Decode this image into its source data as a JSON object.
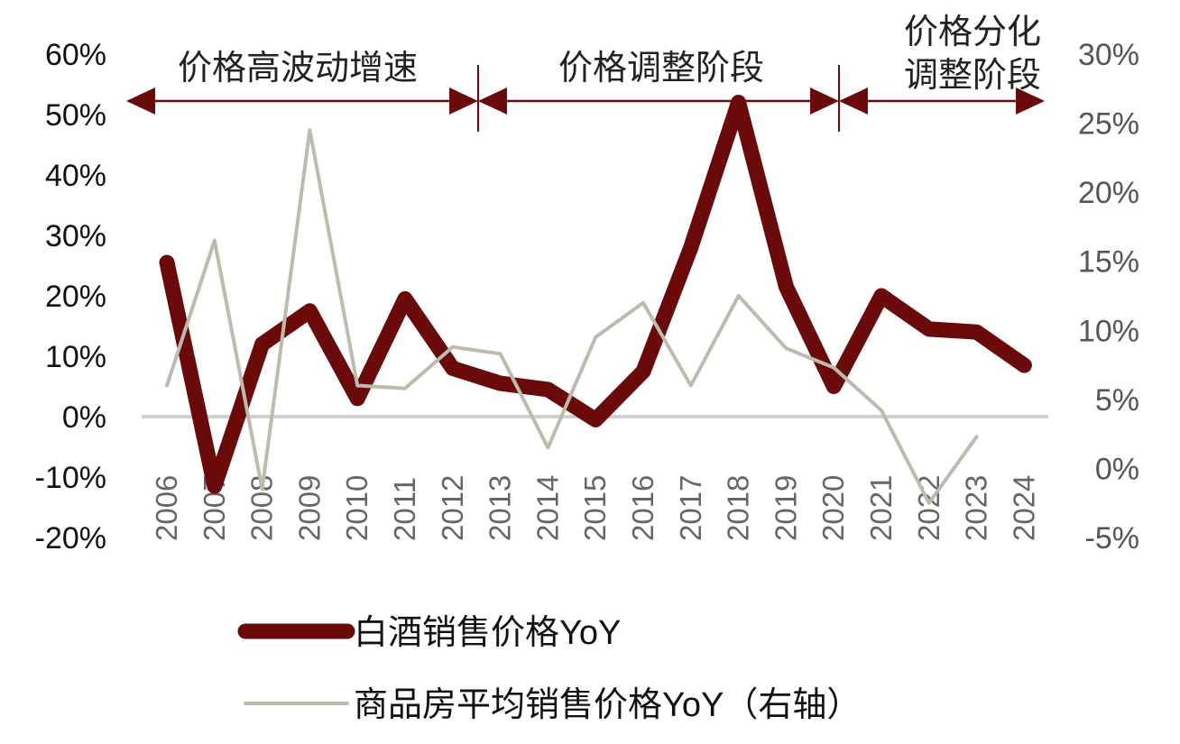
{
  "chart_data": {
    "type": "line",
    "x": [
      "2006",
      "2007",
      "2008",
      "2009",
      "2010",
      "2011",
      "2012",
      "2013",
      "2014",
      "2015",
      "2016",
      "2017",
      "2018",
      "2019",
      "2020",
      "2021",
      "2022",
      "2023",
      "2024"
    ],
    "y_left_ticks": [
      "60%",
      "50%",
      "40%",
      "30%",
      "20%",
      "10%",
      "0%",
      "-10%",
      "-20%"
    ],
    "y_right_ticks": [
      "30%",
      "25%",
      "20%",
      "15%",
      "10%",
      "5%",
      "0%",
      "-5%"
    ],
    "ylim_left": [
      -20,
      60
    ],
    "ylim_right": [
      -5,
      30
    ],
    "series": [
      {
        "name": "白酒销售价格YoY",
        "axis": "left",
        "color": "#6b0a0a",
        "values": [
          25.5,
          -11.5,
          12,
          17.5,
          3,
          19.5,
          8,
          5.5,
          4.5,
          -0.5,
          7.5,
          28,
          52,
          21.5,
          5,
          20,
          14.5,
          14,
          8.5
        ]
      },
      {
        "name": "商品房平均销售价格YoY（右轴）",
        "axis": "right",
        "color": "#bdbbad",
        "values": [
          6,
          16.5,
          -1.5,
          24.5,
          6,
          5.8,
          8.8,
          8.3,
          1.5,
          9.5,
          12,
          6,
          12.5,
          8.7,
          7.3,
          4.2,
          -2.5,
          2.3,
          null
        ]
      }
    ],
    "phases": [
      {
        "label_lines": [
          "价格高波动增速"
        ],
        "from": "2006",
        "to": "2012"
      },
      {
        "label_lines": [
          "价格调整阶段"
        ],
        "from": "2012",
        "to": "2020"
      },
      {
        "label_lines": [
          "价格分化",
          "调整阶段"
        ],
        "from": "2020",
        "to": "2024"
      }
    ],
    "legend_placement": "bottom",
    "grid": false
  }
}
